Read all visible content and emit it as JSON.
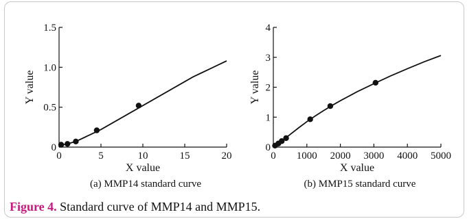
{
  "figure_caption": {
    "label": "Figure 4.",
    "text": " Standard curve of MMP14 and MMP15."
  },
  "colors": {
    "caption_label": "#c8187d",
    "ink": "#111111"
  },
  "chart_data": [
    {
      "type": "line",
      "title": "(a) MMP14 standard curve",
      "xlabel": "X value",
      "ylabel": "Y value",
      "xlim": [
        0,
        20
      ],
      "ylim": [
        0,
        1.5
      ],
      "x_ticks": [
        0,
        5,
        10,
        15,
        20
      ],
      "y_ticks": [
        0,
        0.5,
        1.0,
        1.5
      ],
      "x_tick_labels": [
        "0",
        "5",
        "10",
        "15",
        "20"
      ],
      "y_tick_labels": [
        "0",
        "0.5",
        "1.0",
        "1.5"
      ],
      "points": {
        "x": [
          0.25,
          1.0,
          2.0,
          4.5,
          9.5
        ],
        "y": [
          0.03,
          0.04,
          0.07,
          0.21,
          0.52
        ]
      },
      "curve": {
        "x": [
          0,
          1,
          2,
          3,
          4,
          5,
          6,
          7,
          8,
          9,
          10,
          11,
          12,
          13,
          14,
          15,
          16,
          17,
          18,
          19,
          20
        ],
        "y": [
          0.02,
          0.04,
          0.07,
          0.12,
          0.17,
          0.22,
          0.28,
          0.34,
          0.4,
          0.46,
          0.52,
          0.58,
          0.64,
          0.7,
          0.76,
          0.82,
          0.88,
          0.93,
          0.98,
          1.03,
          1.08
        ]
      },
      "grid": false
    },
    {
      "type": "line",
      "title": "(b) MMP15 standard curve",
      "xlabel": "X value",
      "ylabel": "Y value",
      "xlim": [
        0,
        5000
      ],
      "ylim": [
        0,
        4
      ],
      "x_ticks": [
        0,
        1000,
        2000,
        3000,
        4000,
        5000
      ],
      "y_ticks": [
        0,
        1,
        2,
        3,
        4
      ],
      "x_tick_labels": [
        "0",
        "1000",
        "2000",
        "3000",
        "4000",
        "5000"
      ],
      "y_tick_labels": [
        "0",
        "1",
        "2",
        "3",
        "4"
      ],
      "points": {
        "x": [
          50,
          150,
          250,
          380,
          1100,
          1700,
          3050
        ],
        "y": [
          0.05,
          0.12,
          0.2,
          0.3,
          0.93,
          1.37,
          2.15
        ]
      },
      "curve": {
        "x": [
          0,
          250,
          500,
          750,
          1000,
          1250,
          1500,
          1750,
          2000,
          2500,
          3000,
          3500,
          4000,
          4500,
          5000
        ],
        "y": [
          0.0,
          0.2,
          0.42,
          0.64,
          0.85,
          1.04,
          1.22,
          1.39,
          1.55,
          1.85,
          2.12,
          2.38,
          2.62,
          2.85,
          3.06
        ]
      },
      "grid": false
    }
  ]
}
